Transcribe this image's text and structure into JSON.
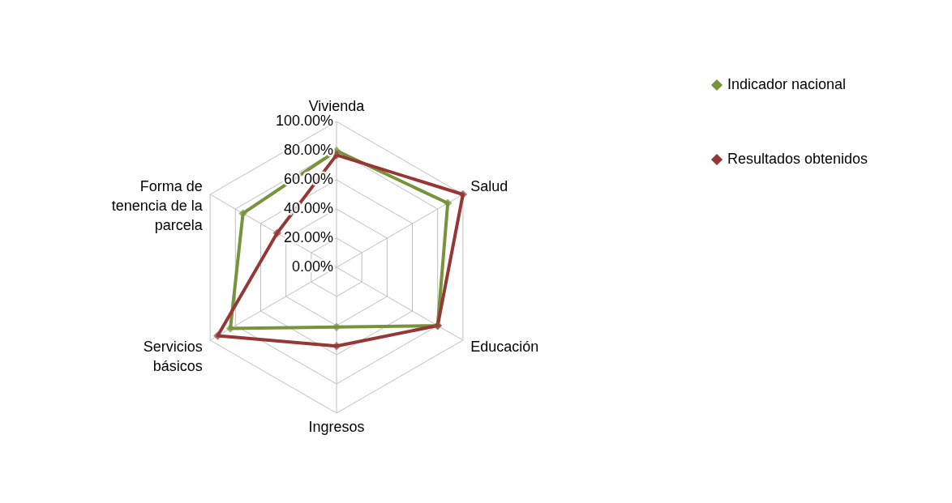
{
  "chart_data": {
    "type": "radar",
    "categories": [
      "Vivienda",
      "Salud",
      "Educación",
      "Ingresos",
      "Servicios básicos",
      "Forma de tenencia de la parcela"
    ],
    "series": [
      {
        "name": "Indicador nacional",
        "color": "#77933c",
        "values": [
          80,
          88,
          80,
          41,
          84,
          74
        ]
      },
      {
        "name": "Resultados obtenidos",
        "color": "#953735",
        "values": [
          77,
          100,
          80,
          54,
          94,
          47
        ]
      }
    ],
    "ylim": [
      0,
      100
    ],
    "yticks": [
      {
        "value": 0,
        "label": "0.00%"
      },
      {
        "value": 20,
        "label": "20.00%"
      },
      {
        "value": 40,
        "label": "40.00%"
      },
      {
        "value": 60,
        "label": "60.00%"
      },
      {
        "value": 80,
        "label": "80.00%"
      },
      {
        "value": 100,
        "label": "100.00%"
      }
    ],
    "grid": true,
    "legend": "right",
    "marker": "diamond"
  }
}
